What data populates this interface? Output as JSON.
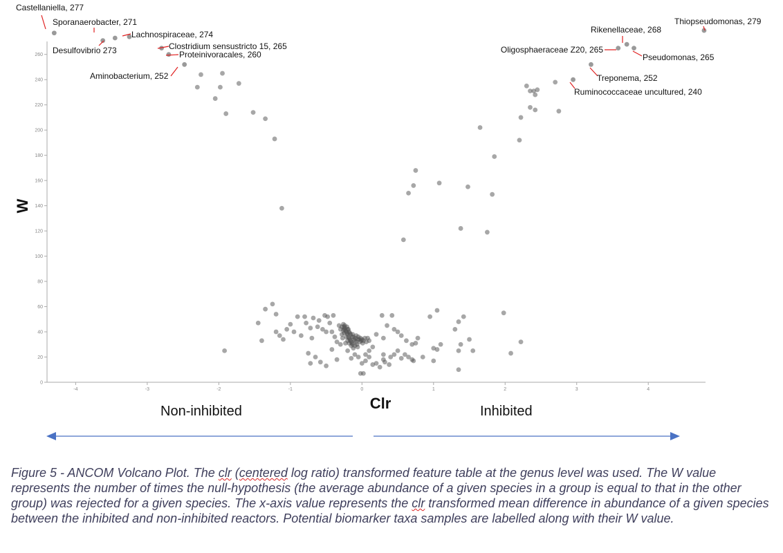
{
  "chart_data": {
    "type": "scatter",
    "xlabel": "Clr",
    "ylabel": "W",
    "xlim": [
      -4.4,
      4.8
    ],
    "ylim": [
      0,
      290
    ],
    "x_ticks": [
      -4,
      -3,
      -2,
      -1,
      0,
      1,
      2,
      3,
      4
    ],
    "y_ticks": [
      0,
      20,
      40,
      60,
      80,
      100,
      120,
      140,
      160,
      180,
      200,
      220,
      240,
      260
    ],
    "grid": false,
    "point_color": "#9a9a9a",
    "labeled_points": [
      {
        "name": "Castellaniella, 277",
        "x": -4.3,
        "y": 277
      },
      {
        "name": "Sporanaerobacter, 271",
        "x": -3.62,
        "y": 271
      },
      {
        "name": "Desulfovibrio 273",
        "x": -3.45,
        "y": 273
      },
      {
        "name": "Lachnospiraceae, 274",
        "x": -3.25,
        "y": 274
      },
      {
        "name": "Clostridium sensustricto 15, 265",
        "x": -2.8,
        "y": 265
      },
      {
        "name": "Proteinivoracales, 260",
        "x": -2.7,
        "y": 260
      },
      {
        "name": "Aminobacterium, 252",
        "x": -2.48,
        "y": 252
      },
      {
        "name": "Rikenellaceae, 268",
        "x": 3.7,
        "y": 268
      },
      {
        "name": "Thiopseudomonas, 279",
        "x": 4.78,
        "y": 279
      },
      {
        "name": "Oligosphaeraceae Z20, 265",
        "x": 3.58,
        "y": 265
      },
      {
        "name": "Pseudomonas, 265",
        "x": 3.8,
        "y": 265
      },
      {
        "name": "Treponema, 252",
        "x": 3.2,
        "y": 252
      },
      {
        "name": "Ruminococcaceae uncultured, 240",
        "x": 2.95,
        "y": 240
      }
    ],
    "points": [
      [
        -2.25,
        244
      ],
      [
        -1.95,
        245
      ],
      [
        -2.3,
        234
      ],
      [
        -1.98,
        234
      ],
      [
        -2.05,
        225
      ],
      [
        -1.72,
        237
      ],
      [
        -1.9,
        213
      ],
      [
        -1.52,
        214
      ],
      [
        -1.35,
        209
      ],
      [
        -1.22,
        193
      ],
      [
        -1.12,
        138
      ],
      [
        -1.92,
        25
      ],
      [
        -1.45,
        47
      ],
      [
        -1.35,
        58
      ],
      [
        -1.25,
        62
      ],
      [
        -1.2,
        54
      ],
      [
        -1.4,
        33
      ],
      [
        -1.15,
        37
      ],
      [
        -1.05,
        42
      ],
      [
        -1.0,
        46
      ],
      [
        -0.95,
        40
      ],
      [
        -0.9,
        52
      ],
      [
        -0.85,
        37
      ],
      [
        -0.8,
        52
      ],
      [
        -0.78,
        47
      ],
      [
        -0.72,
        43
      ],
      [
        -0.7,
        35
      ],
      [
        -0.68,
        51
      ],
      [
        -0.62,
        44
      ],
      [
        -0.6,
        49
      ],
      [
        -0.55,
        42
      ],
      [
        -0.5,
        40
      ],
      [
        -0.48,
        52
      ],
      [
        -0.45,
        47
      ],
      [
        -0.42,
        40
      ],
      [
        -0.38,
        36
      ],
      [
        -0.35,
        32
      ],
      [
        -0.32,
        45
      ],
      [
        -0.28,
        38
      ],
      [
        -0.52,
        53
      ],
      [
        -0.4,
        53
      ],
      [
        -1.1,
        34
      ],
      [
        -1.2,
        40
      ],
      [
        -0.3,
        42
      ],
      [
        -0.75,
        23
      ],
      [
        -0.65,
        20
      ],
      [
        -0.58,
        16
      ],
      [
        -0.72,
        15
      ],
      [
        -0.5,
        13
      ],
      [
        -0.42,
        26
      ],
      [
        -0.35,
        18
      ],
      [
        -0.3,
        30
      ],
      [
        -0.2,
        25
      ],
      [
        -0.15,
        19
      ],
      [
        -0.1,
        22
      ],
      [
        -0.05,
        20
      ],
      [
        0.0,
        15
      ],
      [
        0.05,
        17
      ],
      [
        0.1,
        25
      ],
      [
        0.15,
        28
      ],
      [
        0.2,
        38
      ],
      [
        0.3,
        35
      ],
      [
        0.28,
        53
      ],
      [
        0.42,
        53
      ],
      [
        0.35,
        45
      ],
      [
        0.45,
        42
      ],
      [
        0.5,
        40
      ],
      [
        0.55,
        37
      ],
      [
        0.62,
        33
      ],
      [
        0.7,
        30
      ],
      [
        0.75,
        31
      ],
      [
        0.3,
        18
      ],
      [
        0.25,
        12
      ],
      [
        0.2,
        15
      ],
      [
        0.4,
        20
      ],
      [
        0.45,
        22
      ],
      [
        0.5,
        25
      ],
      [
        0.55,
        19
      ],
      [
        0.6,
        22
      ],
      [
        0.65,
        20
      ],
      [
        0.7,
        18
      ],
      [
        0.3,
        22
      ],
      [
        0.32,
        16
      ],
      [
        0.38,
        14
      ],
      [
        0.15,
        14
      ],
      [
        0.1,
        20
      ],
      [
        0.05,
        22
      ],
      [
        -0.02,
        7
      ],
      [
        0.02,
        7
      ],
      [
        0.78,
        35
      ],
      [
        0.95,
        52
      ],
      [
        1.05,
        57
      ],
      [
        1.0,
        27
      ],
      [
        1.1,
        30
      ],
      [
        1.05,
        26
      ],
      [
        1.3,
        42
      ],
      [
        1.35,
        48
      ],
      [
        1.42,
        52
      ],
      [
        1.38,
        30
      ],
      [
        1.5,
        34
      ],
      [
        1.55,
        25
      ],
      [
        1.35,
        25
      ],
      [
        1.35,
        10
      ],
      [
        1.0,
        17
      ],
      [
        0.85,
        20
      ],
      [
        0.72,
        17
      ],
      [
        1.98,
        55
      ],
      [
        2.22,
        32
      ],
      [
        2.08,
        23
      ],
      [
        0.58,
        113
      ],
      [
        0.65,
        150
      ],
      [
        0.72,
        156
      ],
      [
        0.75,
        168
      ],
      [
        1.08,
        158
      ],
      [
        1.38,
        122
      ],
      [
        1.48,
        155
      ],
      [
        1.75,
        119
      ],
      [
        1.82,
        149
      ],
      [
        1.85,
        179
      ],
      [
        1.65,
        202
      ],
      [
        2.2,
        192
      ],
      [
        2.22,
        210
      ],
      [
        2.35,
        218
      ],
      [
        2.42,
        216
      ],
      [
        2.3,
        235
      ],
      [
        2.35,
        231
      ],
      [
        2.4,
        231
      ],
      [
        2.45,
        232
      ],
      [
        2.42,
        228
      ],
      [
        2.7,
        238
      ],
      [
        2.75,
        215
      ],
      [
        -0.26,
        46
      ],
      [
        -0.25,
        44
      ],
      [
        -0.24,
        43
      ],
      [
        -0.23,
        41
      ],
      [
        -0.22,
        40
      ],
      [
        -0.21,
        39
      ],
      [
        -0.2,
        38
      ],
      [
        -0.19,
        36
      ],
      [
        -0.18,
        35
      ],
      [
        -0.17,
        34
      ],
      [
        -0.16,
        33
      ],
      [
        -0.15,
        32
      ],
      [
        -0.14,
        31
      ],
      [
        -0.13,
        30
      ],
      [
        -0.12,
        36
      ],
      [
        -0.11,
        34
      ],
      [
        -0.1,
        33
      ],
      [
        -0.09,
        35
      ],
      [
        -0.08,
        32
      ],
      [
        -0.07,
        30
      ],
      [
        -0.06,
        34
      ],
      [
        -0.05,
        36
      ],
      [
        -0.04,
        34
      ],
      [
        -0.03,
        32
      ],
      [
        -0.02,
        35
      ],
      [
        -0.01,
        33
      ],
      [
        0.0,
        34
      ],
      [
        0.01,
        31
      ],
      [
        0.02,
        33
      ],
      [
        0.04,
        35
      ],
      [
        -0.25,
        39
      ],
      [
        -0.22,
        36
      ],
      [
        -0.2,
        33
      ],
      [
        -0.18,
        31
      ],
      [
        -0.15,
        29
      ],
      [
        -0.12,
        27
      ],
      [
        -0.25,
        42
      ],
      [
        -0.24,
        45
      ],
      [
        -0.2,
        42
      ],
      [
        -0.18,
        40
      ],
      [
        -0.16,
        38
      ],
      [
        -0.14,
        36
      ],
      [
        -0.27,
        35
      ],
      [
        -0.23,
        31
      ],
      [
        -0.1,
        29
      ],
      [
        -0.08,
        37
      ],
      [
        -0.06,
        28
      ],
      [
        0.06,
        32
      ],
      [
        0.08,
        35
      ],
      [
        0.1,
        33
      ],
      [
        -0.28,
        44
      ],
      [
        -0.26,
        41
      ],
      [
        -0.21,
        44
      ],
      [
        -0.19,
        42
      ],
      [
        -0.17,
        39
      ],
      [
        -0.13,
        38
      ]
    ]
  },
  "annotations": {
    "left_group": "Non-inhibited",
    "right_group": "Inhibited",
    "arrow_color": "#4a72c4",
    "leader_color": "#e02020"
  },
  "caption": {
    "part1": "Figure 5 - ANCOM Volcano Plot. The ",
    "clr1": "clr",
    "part2": " (",
    "centered": "centered",
    "part3": " log ratio) transformed feature table at the genus level was used. The W value represents the number of times the null-hypothesis (the average abundance of a given species in a group is equal to that in the other group) was rejected for a given species. The x-axis value represents the ",
    "clr2": "clr",
    "part4": " transformed mean difference in abundance of a given species between the inhibited and non-inhibited reactors. Potential biomarker taxa samples are labelled along with their W value."
  }
}
